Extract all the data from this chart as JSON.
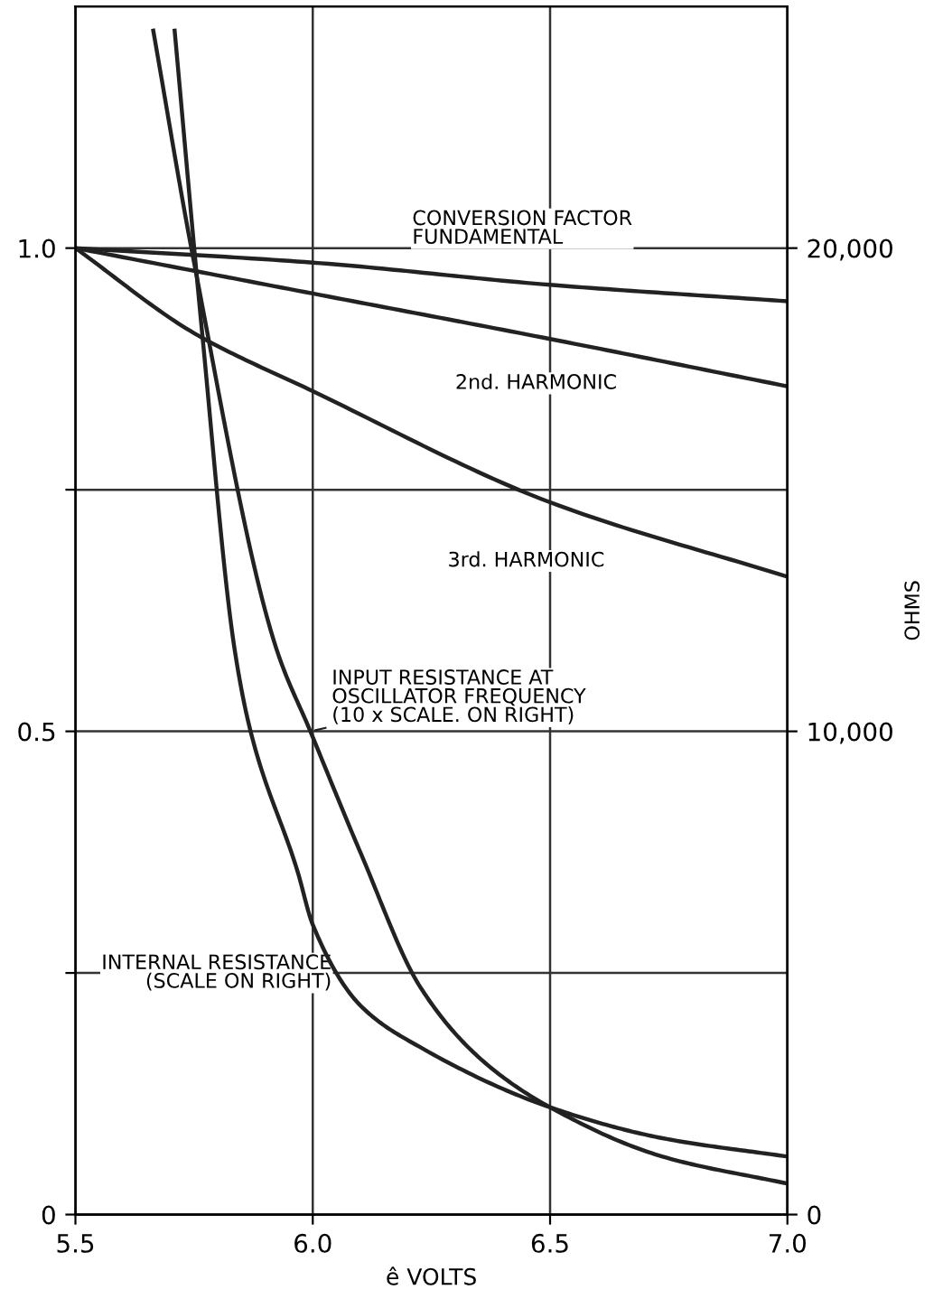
{
  "chart_data": {
    "type": "line",
    "xlabel": "ê VOLTS",
    "y2label": "OHMS",
    "xlim": [
      5.5,
      7.0
    ],
    "xticks": [
      5.5,
      {
        "value": 6.0,
        "label": "6.0"
      },
      6.5,
      {
        "value": 7.0,
        "label": "7.0"
      }
    ],
    "ylim": [
      0,
      1.25
    ],
    "yticks": [
      0,
      {
        "value": 0.25,
        "label": null
      },
      0.5,
      {
        "value": 0.75,
        "label": null
      },
      {
        "value": 1.0,
        "label": "1.0"
      }
    ],
    "y2lim": [
      0,
      25000
    ],
    "y2ticks": [
      0,
      {
        "value": 10000,
        "label": "10,000"
      },
      {
        "value": 20000,
        "label": "20,000"
      }
    ],
    "grid": true,
    "legend": false,
    "marker": "none",
    "line_style": "solid",
    "series": [
      {
        "name": "CONVERSION FACTOR\nFUNDAMENTAL",
        "color": "#222222",
        "x": [
          5.5,
          6.0,
          6.5,
          7.0
        ],
        "values": [
          1.0,
          0.985,
          0.962,
          0.945
        ]
      },
      {
        "name": "2nd. HARMONIC",
        "color": "#222222",
        "x": [
          5.5,
          6.0,
          6.5,
          7.0
        ],
        "values": [
          1.0,
          0.953,
          0.906,
          0.857
        ]
      },
      {
        "name": "3rd. HARMONIC",
        "color": "#222222",
        "x": [
          5.5,
          5.75,
          6.0,
          6.5,
          7.0
        ],
        "values": [
          1.0,
          0.912,
          0.852,
          0.737,
          0.66
        ]
      },
      {
        "name": "INPUT RESISTANCE AT\nOSCILLATOR FREQUENCY\n(10 x SCALE. ON RIGHT)",
        "color": "#222222",
        "axis": "y2",
        "x": [
          5.664,
          5.748,
          5.923,
          5.995,
          6.101,
          6.227,
          6.356,
          6.5,
          6.737,
          7.0
        ],
        "values": [
          24500,
          19800,
          11720,
          10000,
          7480,
          4700,
          3200,
          2220,
          1200,
          640
        ]
      },
      {
        "name": "INTERNAL RESISTANCE\n(SCALE ON RIGHT)",
        "color": "#222222",
        "axis": "y2",
        "x": [
          5.709,
          5.767,
          5.835,
          5.869,
          5.968,
          6.0,
          6.101,
          6.227,
          6.5,
          6.737,
          7.0
        ],
        "values": [
          24500,
          18240,
          11720,
          10000,
          7100,
          6000,
          4320,
          3460,
          2220,
          1580,
          1200
        ]
      }
    ]
  }
}
